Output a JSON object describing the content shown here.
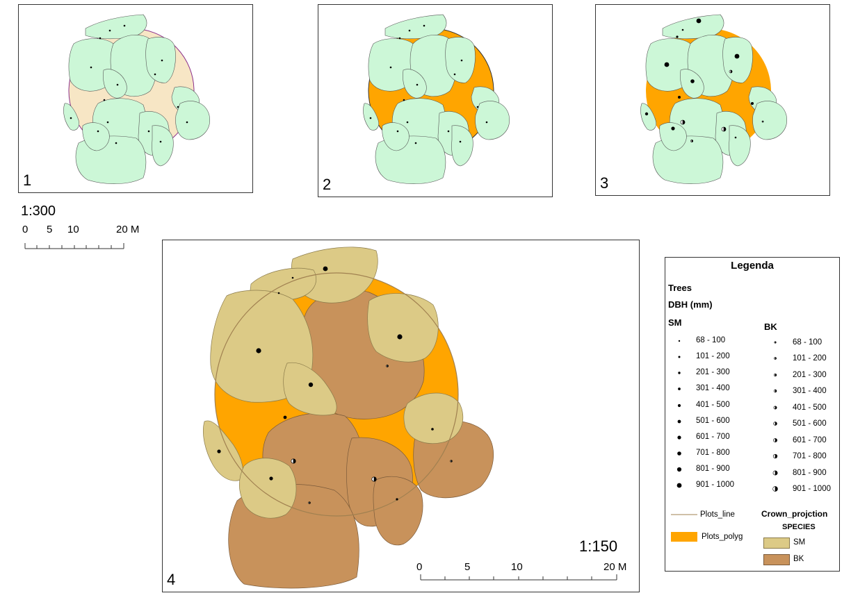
{
  "panels": [
    {
      "label": "1"
    },
    {
      "label": "2"
    },
    {
      "label": "3"
    },
    {
      "label": "4"
    }
  ],
  "colors": {
    "crown_default": "#ccf7d7",
    "plot_fill_light": "#f7e6c5",
    "plot_fill": "#ffa500",
    "sm": "#dcca86",
    "bk": "#c8925b",
    "plots_line": "#a08050"
  },
  "scale_small": {
    "ratio": "1:300",
    "ticks": [
      "0",
      "5",
      "10",
      "20 M"
    ]
  },
  "scale_large": {
    "ratio": "1:150",
    "ticks": [
      "0",
      "5",
      "10",
      "20 M"
    ]
  },
  "legend": {
    "title": "Legenda",
    "subtitle": "Trees",
    "field": "DBH (mm)",
    "sm_header": "SM",
    "bk_header": "BK",
    "classes": [
      "68 - 100",
      "101 - 200",
      "201 - 300",
      "301 - 400",
      "401 - 500",
      "501 - 600",
      "601 - 700",
      "701 - 800",
      "801 - 900",
      "901 - 1000"
    ],
    "plots_line": "Plots_line",
    "plots_polyg": "Plots_polyg",
    "crown_header": "Crown_projction",
    "species_header": "SPECIES",
    "species": [
      "SM",
      "BK"
    ]
  }
}
